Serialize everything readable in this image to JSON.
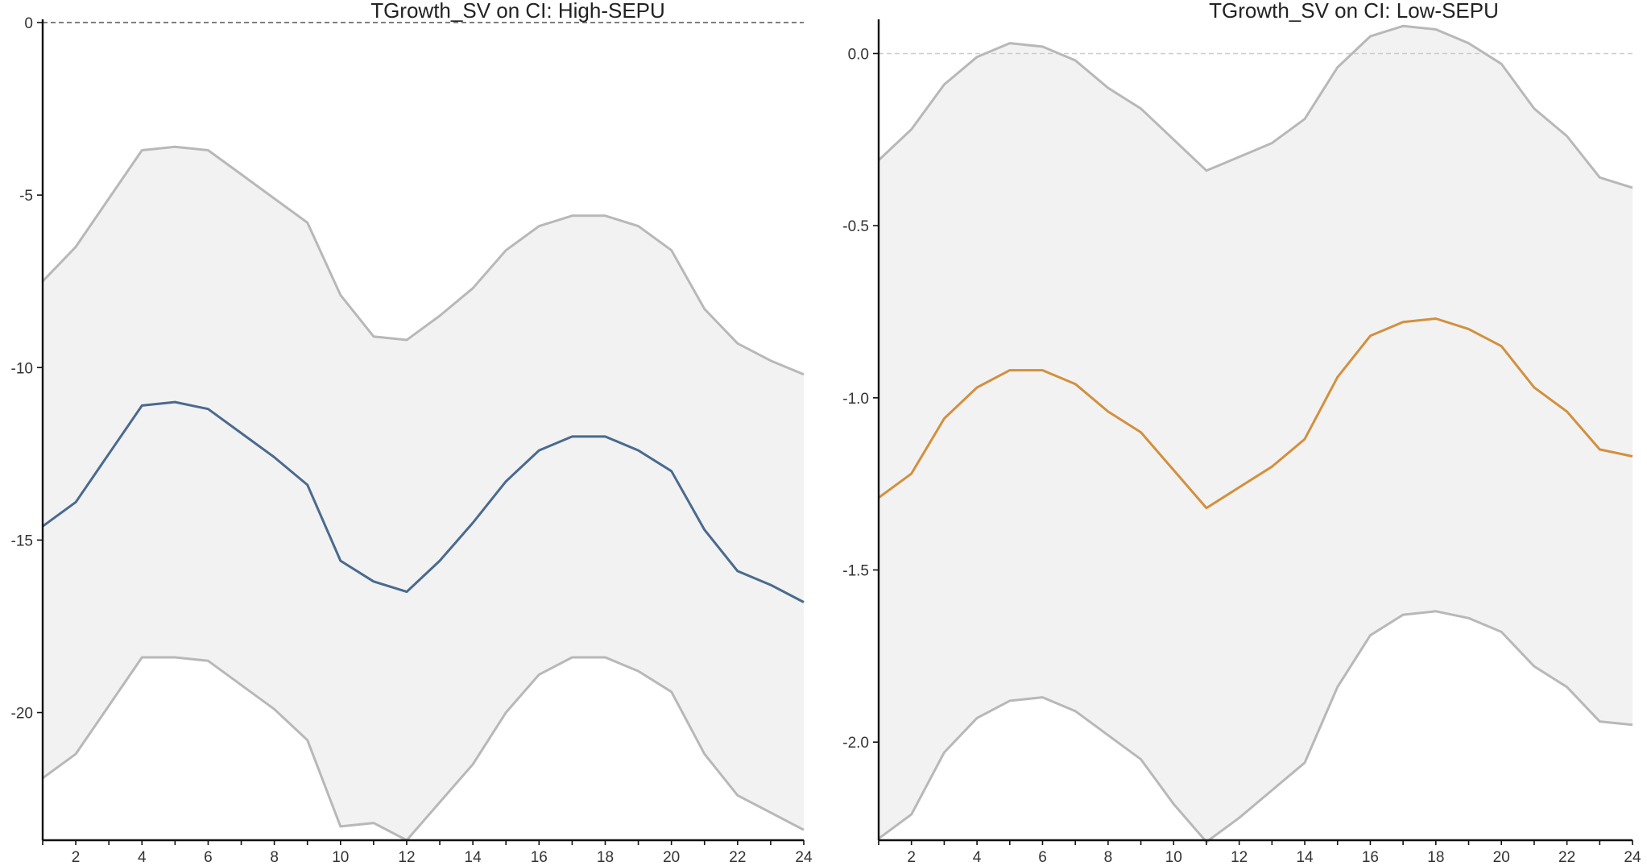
{
  "chart_data": [
    {
      "type": "line",
      "title": "TGrowth_SV on CI: High-SEPU",
      "x": [
        1,
        2,
        3,
        4,
        5,
        6,
        7,
        8,
        9,
        10,
        11,
        12,
        13,
        14,
        15,
        16,
        17,
        18,
        19,
        20,
        21,
        22,
        23,
        24
      ],
      "xticks": [
        2,
        4,
        6,
        8,
        10,
        12,
        14,
        16,
        18,
        20,
        22,
        24
      ],
      "yticks": [
        0,
        -5,
        -10,
        -15,
        -20
      ],
      "ytick_labels": [
        "0",
        "-5",
        "-10",
        "-15",
        "-20"
      ],
      "xlim": [
        1,
        24
      ],
      "ylim": [
        -23.7,
        0
      ],
      "zero_line": {
        "y": 0,
        "style": "dashed",
        "color": "#555555"
      },
      "colors": {
        "mean": "#4a6a8e",
        "ci": "#b8b8b8",
        "band": "#f2f2f2"
      },
      "series": [
        {
          "values": [
            -14.6,
            -13.9,
            -12.5,
            -11.1,
            -11.0,
            -11.2,
            -11.9,
            -12.6,
            -13.4,
            -15.6,
            -16.2,
            -16.5,
            -15.6,
            -14.5,
            -13.3,
            -12.4,
            -12.0,
            -12.0,
            -12.4,
            -13.0,
            -14.7,
            -15.9,
            -16.3,
            -16.8
          ]
        },
        {
          "values": [
            -7.5,
            -6.5,
            -5.1,
            -3.7,
            -3.6,
            -3.7,
            -4.4,
            -5.1,
            -5.8,
            -7.9,
            -9.1,
            -9.2,
            -8.5,
            -7.7,
            -6.6,
            -5.9,
            -5.6,
            -5.6,
            -5.9,
            -6.6,
            -8.3,
            -9.3,
            -9.8,
            -10.2
          ]
        },
        {
          "values": [
            -21.9,
            -21.2,
            -19.8,
            -18.4,
            -18.4,
            -18.5,
            -19.2,
            -19.9,
            -20.8,
            -23.3,
            -23.2,
            -23.7,
            -22.6,
            -21.5,
            -20.0,
            -18.9,
            -18.4,
            -18.4,
            -18.8,
            -19.4,
            -21.2,
            -22.4,
            -22.9,
            -23.4
          ]
        }
      ]
    },
    {
      "type": "line",
      "title": "TGrowth_SV on CI: Low-SEPU",
      "x": [
        1,
        2,
        3,
        4,
        5,
        6,
        7,
        8,
        9,
        10,
        11,
        12,
        13,
        14,
        15,
        16,
        17,
        18,
        19,
        20,
        21,
        22,
        23,
        24
      ],
      "xticks": [
        2,
        4,
        6,
        8,
        10,
        12,
        14,
        16,
        18,
        20,
        22,
        24
      ],
      "yticks": [
        0,
        -0.5,
        -1,
        -1.5,
        -2
      ],
      "ytick_labels": [
        "0.0",
        "-0.5",
        "-1.0",
        "-1.5",
        "-2.0"
      ],
      "xlim": [
        1,
        24
      ],
      "ylim": [
        -2.285,
        0.09
      ],
      "zero_line": {
        "y": 0,
        "style": "dashed",
        "color": "#cccccc"
      },
      "colors": {
        "mean": "#d2903e",
        "ci": "#b8b8b8",
        "band": "#f2f2f2"
      },
      "series": [
        {
          "values": [
            -1.29,
            -1.22,
            -1.06,
            -0.97,
            -0.92,
            -0.92,
            -0.96,
            -1.04,
            -1.1,
            -1.21,
            -1.32,
            -1.26,
            -1.2,
            -1.12,
            -0.94,
            -0.82,
            -0.78,
            -0.77,
            -0.8,
            -0.85,
            -0.97,
            -1.04,
            -1.15,
            -1.17
          ]
        },
        {
          "values": [
            -0.31,
            -0.22,
            -0.09,
            -0.01,
            0.03,
            0.02,
            -0.02,
            -0.1,
            -0.16,
            -0.25,
            -0.34,
            -0.3,
            -0.26,
            -0.19,
            -0.04,
            0.05,
            0.08,
            0.07,
            0.03,
            -0.03,
            -0.16,
            -0.24,
            -0.36,
            -0.39
          ]
        },
        {
          "values": [
            -2.28,
            -2.21,
            -2.03,
            -1.93,
            -1.88,
            -1.87,
            -1.91,
            -1.98,
            -2.05,
            -2.18,
            -2.29,
            -2.22,
            -2.14,
            -2.06,
            -1.84,
            -1.69,
            -1.63,
            -1.62,
            -1.64,
            -1.68,
            -1.78,
            -1.84,
            -1.94,
            -1.95
          ]
        }
      ]
    }
  ]
}
